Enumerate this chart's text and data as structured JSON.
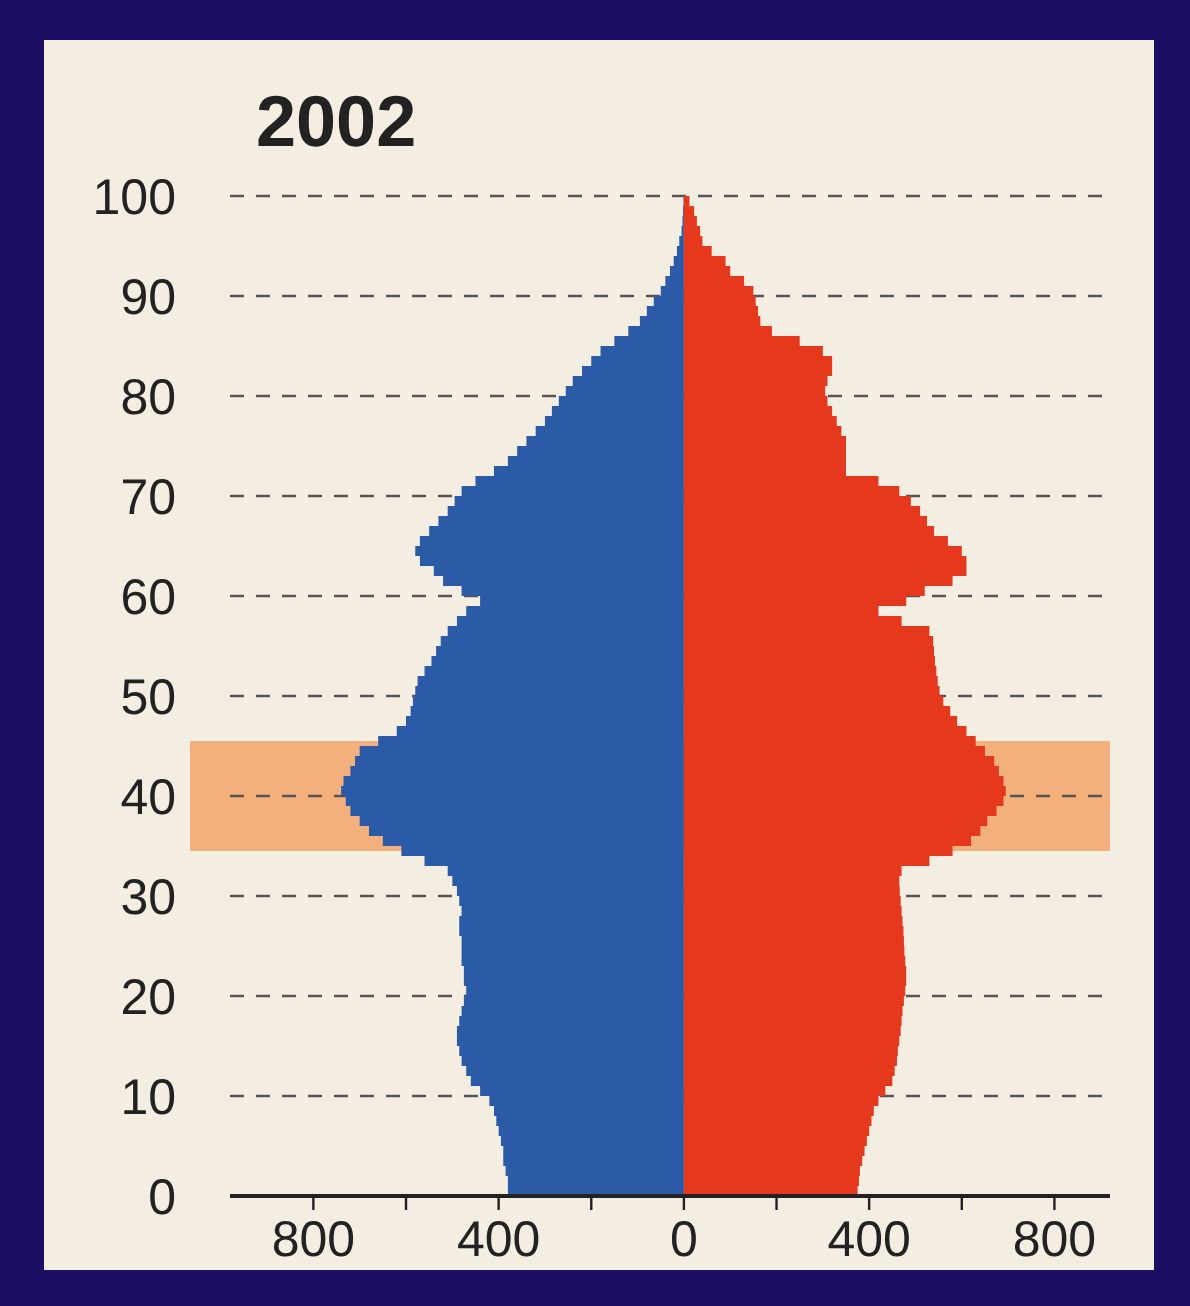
{
  "chart_data": {
    "type": "bar",
    "title": "2002",
    "orientation": "horizontal",
    "stacked": true,
    "x": [
      0.5,
      1.5,
      2.5,
      3.5,
      4.5,
      5.5,
      6.5,
      7.5,
      8.5,
      9.5,
      10.5,
      11.5,
      12.5,
      13.5,
      14.5,
      15.5,
      16.5,
      17.5,
      18.5,
      19.5,
      20.5,
      21.5,
      22.5,
      23.5,
      24.5,
      25.5,
      26.5,
      27.5,
      28.5,
      29.5,
      30.5,
      31.5,
      32.5,
      33.5,
      34.5,
      35.5,
      36.5,
      37.5,
      38.5,
      39.5,
      40.5,
      41.5,
      42.5,
      43.5,
      44.5,
      45.5,
      46.5,
      47.5,
      48.5,
      49.5,
      50.5,
      51.5,
      52.5,
      53.5,
      54.5,
      55.5,
      56.5,
      57.5,
      58.5,
      59.5,
      60.5,
      61.5,
      62.5,
      63.5,
      64.5,
      65.5,
      66.5,
      67.5,
      68.5,
      69.5,
      70.5,
      71.5,
      72.5,
      73.5,
      74.5,
      75.5,
      76.5,
      77.5,
      78.5,
      79.5,
      80.5,
      81.5,
      82.5,
      83.5,
      84.5,
      85.5,
      86.5,
      87.5,
      88.5,
      89.5,
      90.5,
      91.5,
      92.5,
      93.5,
      94.5,
      95.5,
      96.5,
      97.5,
      98.5,
      99.5
    ],
    "series": [
      {
        "color": "#2b5ba6",
        "values": [
          -380,
          -380,
          -385,
          -390,
          -390,
          -395,
          -400,
          -405,
          -410,
          -420,
          -440,
          -460,
          -470,
          -480,
          -485,
          -490,
          -490,
          -485,
          -480,
          -475,
          -470,
          -475,
          -475,
          -480,
          -480,
          -480,
          -485,
          -485,
          -480,
          -485,
          -490,
          -500,
          -510,
          -560,
          -610,
          -650,
          -680,
          -700,
          -720,
          -730,
          -740,
          -735,
          -720,
          -710,
          -700,
          -660,
          -620,
          -600,
          -590,
          -585,
          -580,
          -575,
          -560,
          -545,
          -535,
          -525,
          -510,
          -490,
          -470,
          -440,
          -480,
          -520,
          -540,
          -570,
          -580,
          -570,
          -550,
          -530,
          -510,
          -495,
          -480,
          -450,
          -410,
          -380,
          -360,
          -340,
          -320,
          -300,
          -285,
          -270,
          -255,
          -240,
          -220,
          -200,
          -180,
          -150,
          -120,
          -95,
          -80,
          -65,
          -50,
          -40,
          -30,
          -22,
          -15,
          -10,
          -5,
          -3,
          -2,
          -1
        ]
      },
      {
        "color": "#e5381d",
        "values": [
          375,
          378,
          380,
          385,
          390,
          395,
          400,
          405,
          410,
          420,
          435,
          450,
          455,
          460,
          462,
          465,
          468,
          470,
          472,
          475,
          478,
          480,
          480,
          478,
          476,
          475,
          474,
          472,
          470,
          468,
          466,
          465,
          470,
          530,
          580,
          620,
          640,
          655,
          675,
          690,
          695,
          690,
          680,
          670,
          650,
          630,
          610,
          590,
          575,
          560,
          552,
          548,
          545,
          542,
          540,
          538,
          530,
          470,
          420,
          480,
          520,
          580,
          610,
          610,
          600,
          570,
          540,
          525,
          510,
          490,
          465,
          420,
          350,
          350,
          350,
          350,
          340,
          330,
          320,
          310,
          305,
          310,
          320,
          320,
          300,
          250,
          190,
          165,
          160,
          155,
          150,
          130,
          100,
          90,
          60,
          40,
          35,
          28,
          22,
          12
        ]
      }
    ],
    "xlim": [
      -980,
      920
    ],
    "xticks": [
      {
        "value": -800,
        "label": "800"
      },
      {
        "value": -600,
        "label": null
      },
      {
        "value": -400,
        "label": "400"
      },
      {
        "value": -200,
        "label": null
      },
      0,
      {
        "value": 200,
        "label": null
      },
      400,
      {
        "value": 600,
        "label": null
      },
      800
    ],
    "ylim": [
      0,
      100
    ],
    "yticks": [
      0,
      10,
      20,
      30,
      40,
      50,
      60,
      70,
      80,
      90,
      100
    ],
    "grid": "y",
    "bands": [
      {
        "axis": "y",
        "from": 34.5,
        "to": 45.5,
        "color": "#f2a46a"
      }
    ]
  }
}
